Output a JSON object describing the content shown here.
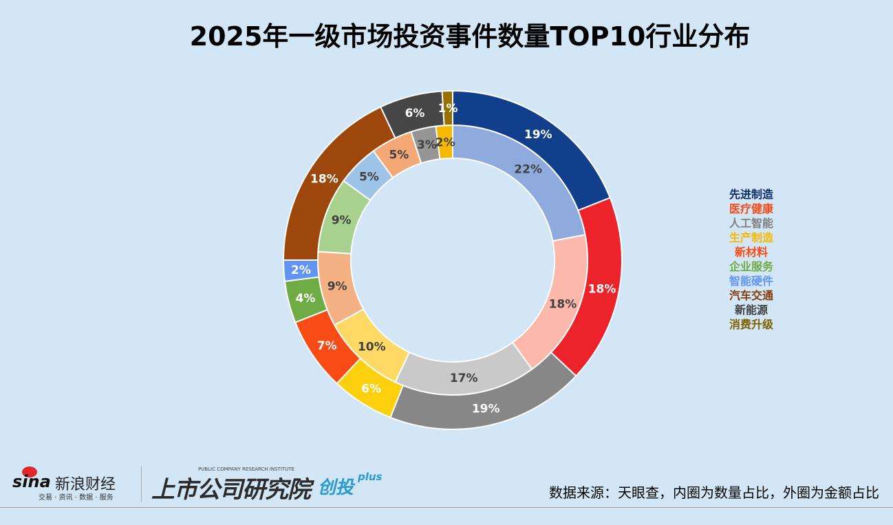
{
  "chart_data": {
    "type": "donut",
    "title": "2025年一级市场投资事件数量TOP10行业分布",
    "categories": [
      "先进制造",
      "医疗健康",
      "人工智能",
      "生产制造",
      "新材料",
      "企业服务",
      "智能硬件",
      "汽车交通",
      "新能源",
      "消费升级"
    ],
    "series": [
      {
        "ring": "outer",
        "values": [
          19,
          18,
          19,
          6,
          7,
          4,
          2,
          18,
          6,
          1
        ],
        "colors": [
          "#123f8c",
          "#ec232a",
          "#878787",
          "#fdd00d",
          "#f94b16",
          "#6fab45",
          "#6195f4",
          "#9d470c",
          "#464646",
          "#977100"
        ]
      },
      {
        "ring": "inner",
        "values": [
          22,
          18,
          17,
          10,
          9,
          9,
          5,
          5,
          3,
          2
        ],
        "colors": [
          "#8faadc",
          "#fcb8aa",
          "#c9c9c9",
          "#ffd966",
          "#f4b183",
          "#a9d18e",
          "#9dc3e6",
          "#f4a876",
          "#959595",
          "#f7b900"
        ]
      }
    ],
    "legend": {
      "placement": "right",
      "colors": [
        "#0f2d6b",
        "#f94b16",
        "#7f7f7f",
        "#f7b900",
        "#f94b16",
        "#6fab45",
        "#6195f4",
        "#843c0c",
        "#404040",
        "#7f6000"
      ]
    },
    "data_label_format": "{v}%"
  },
  "footer": {
    "source": "数据来源：天眼查，内圈为数量占比，外圈为金额占比",
    "sina_logo": "sina新浪财经",
    "sina_tagline": "交易 · 资讯 · 数据 · 服务",
    "institute_logo": "上市公司研究院",
    "institute_en": "PUBLIC COMPANY RESEARCH INSTITUTE",
    "chuangtou_logo": "创投",
    "plus": "plus"
  }
}
